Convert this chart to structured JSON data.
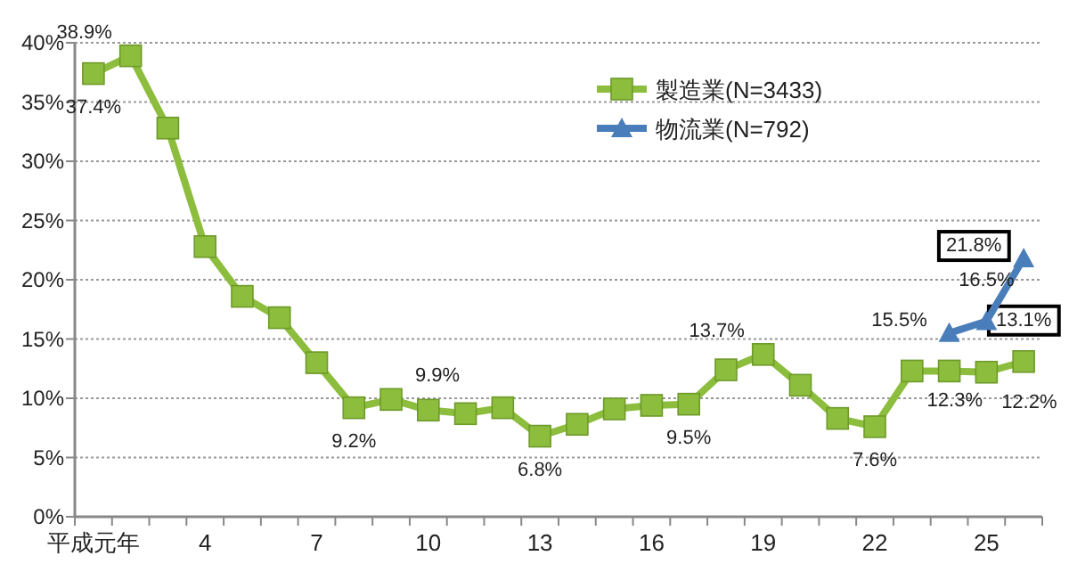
{
  "chart_data": {
    "type": "line",
    "categories": [
      "平成元年",
      null,
      null,
      "4",
      null,
      null,
      "7",
      null,
      null,
      "10",
      null,
      null,
      "13",
      null,
      null,
      "16",
      null,
      null,
      "19",
      null,
      null,
      "22",
      null,
      null,
      "25",
      null
    ],
    "series": [
      {
        "name": "製造業(N=3433)",
        "color": "#8cbd3c",
        "marker": "square",
        "values": [
          37.4,
          38.9,
          32.8,
          22.8,
          18.6,
          16.8,
          13.0,
          9.2,
          9.9,
          9.0,
          8.7,
          9.2,
          6.8,
          7.8,
          9.1,
          9.4,
          9.5,
          12.4,
          13.7,
          11.1,
          8.3,
          7.6,
          12.3,
          12.3,
          12.2,
          13.1
        ],
        "value_labels": [
          "37.4%",
          "38.9%",
          null,
          null,
          null,
          null,
          null,
          "9.2%",
          "9.9%",
          null,
          null,
          null,
          "6.8%",
          null,
          null,
          null,
          "9.5%",
          null,
          "13.7%",
          null,
          null,
          "7.6%",
          "12.3%",
          null,
          "12.2%",
          "13.1%"
        ]
      },
      {
        "name": "物流業(N=792)",
        "color": "#4a7ebb",
        "marker": "triangle",
        "values": [
          null,
          null,
          null,
          null,
          null,
          null,
          null,
          null,
          null,
          null,
          null,
          null,
          null,
          null,
          null,
          null,
          null,
          null,
          null,
          null,
          null,
          null,
          null,
          15.5,
          16.5,
          21.8
        ],
        "value_labels": [
          null,
          null,
          null,
          null,
          null,
          null,
          null,
          null,
          null,
          null,
          null,
          null,
          null,
          null,
          null,
          null,
          null,
          null,
          null,
          null,
          null,
          null,
          null,
          "15.5%",
          "16.5%",
          "21.8%"
        ]
      }
    ],
    "ylim": [
      0,
      40
    ],
    "yticks": [
      {
        "value": 0,
        "label": "0%"
      },
      {
        "value": 5,
        "label": "5%"
      },
      {
        "value": 10,
        "label": "10%"
      },
      {
        "value": 15,
        "label": "15%"
      },
      {
        "value": 20,
        "label": "20%"
      },
      {
        "value": 25,
        "label": "25%"
      },
      {
        "value": 30,
        "label": "30%"
      },
      {
        "value": 35,
        "label": "35%"
      },
      {
        "value": 40,
        "label": "40%"
      }
    ],
    "grid": "y",
    "legend": "top",
    "line_style": "solid"
  }
}
